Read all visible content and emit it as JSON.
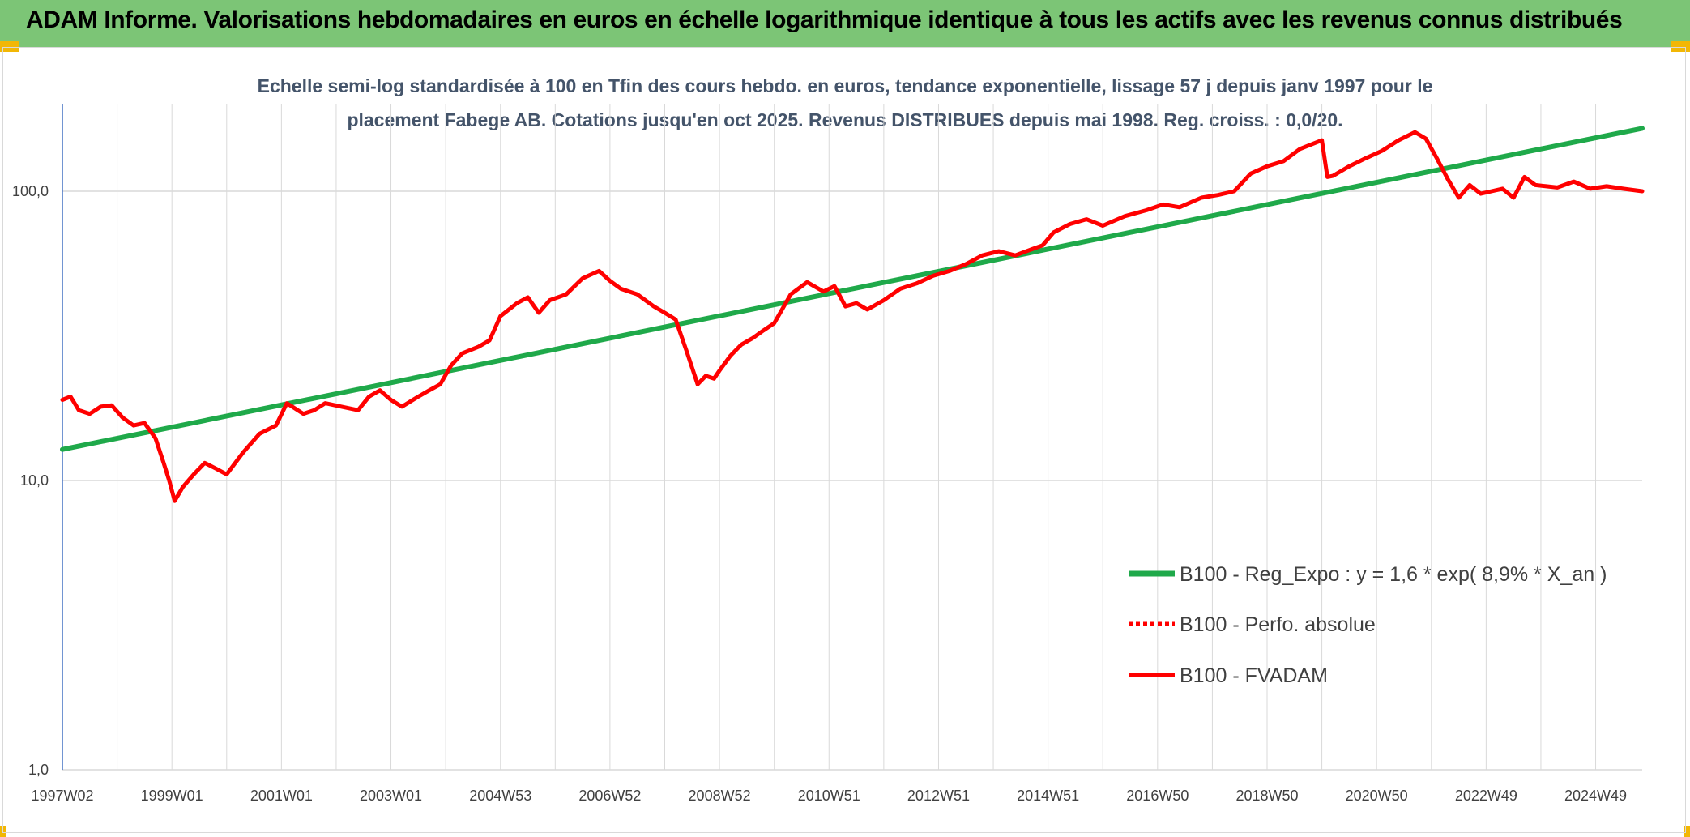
{
  "header": {
    "title": "ADAM Informe. Valorisations hebdomadaires en euros en échelle logarithmique identique à tous les actifs avec les revenus connus distribués"
  },
  "colors": {
    "header_bg": "#7cc576",
    "reg_line": "#1fa94a",
    "fvadam_line": "#ff0000",
    "perf_line": "#ff0000",
    "grid": "#d9d9d9",
    "axis": "#4472c4"
  },
  "chart_data": {
    "type": "line",
    "subtitle_lines": [
      "Echelle semi-log standardisée à 100 en Tfin des cours hebdo. en euros, tendance exponentielle, lissage 57 j depuis janv 1997 pour le",
      "placement Fabege AB. Cotations jusqu'en oct 2025. Revenus DISTRIBUES depuis mai 1998. Reg. croiss. : 0,0/20."
    ],
    "y_scale": "log",
    "ylim": [
      1,
      180
    ],
    "xlim": [
      1997.0,
      2025.85
    ],
    "y_ticks": [
      {
        "value": 1,
        "label": "1,0"
      },
      {
        "value": 10,
        "label": "10,0"
      },
      {
        "value": 100,
        "label": "100,0"
      }
    ],
    "x_ticks": [
      {
        "value": 1997.0,
        "label": "1997W02"
      },
      {
        "value": 1999.0,
        "label": "1999W01"
      },
      {
        "value": 2001.0,
        "label": "2001W01"
      },
      {
        "value": 2003.0,
        "label": "2003W01"
      },
      {
        "value": 2005.0,
        "label": "2004W53"
      },
      {
        "value": 2007.0,
        "label": "2006W52"
      },
      {
        "value": 2009.0,
        "label": "2008W52"
      },
      {
        "value": 2011.0,
        "label": "2010W51"
      },
      {
        "value": 2013.0,
        "label": "2012W51"
      },
      {
        "value": 2015.0,
        "label": "2014W51"
      },
      {
        "value": 2017.0,
        "label": "2016W50"
      },
      {
        "value": 2019.0,
        "label": "2018W50"
      },
      {
        "value": 2021.0,
        "label": "2020W50"
      },
      {
        "value": 2023.0,
        "label": "2022W49"
      },
      {
        "value": 2025.0,
        "label": "2024W49"
      }
    ],
    "legend_position": "right",
    "series": [
      {
        "name": "B100 - Reg_Expo : y = 1,6 * exp( 8,9% *  X_an )",
        "style": "solid-thick",
        "color": "#1fa94a",
        "x": [
          1997.0,
          2025.85
        ],
        "y": [
          12.8,
          165
        ]
      },
      {
        "name": "B100 - Perfo. absolue",
        "style": "dotted",
        "color": "#ff0000",
        "x": [],
        "y": []
      },
      {
        "name": "B100 - FVADAM",
        "style": "solid",
        "color": "#ff0000",
        "x": [
          1997.0,
          1997.15,
          1997.3,
          1997.5,
          1997.7,
          1997.9,
          1998.1,
          1998.3,
          1998.5,
          1998.7,
          1998.85,
          1998.95,
          1999.05,
          1999.2,
          1999.4,
          1999.6,
          1999.8,
          2000.0,
          2000.3,
          2000.6,
          2000.9,
          2001.1,
          2001.4,
          2001.6,
          2001.8,
          2002.1,
          2002.4,
          2002.6,
          2002.8,
          2003.0,
          2003.2,
          2003.5,
          2003.7,
          2003.9,
          2004.1,
          2004.3,
          2004.6,
          2004.8,
          2005.0,
          2005.3,
          2005.5,
          2005.7,
          2005.9,
          2006.2,
          2006.5,
          2006.8,
          2007.0,
          2007.2,
          2007.5,
          2007.8,
          2008.0,
          2008.2,
          2008.4,
          2008.6,
          2008.75,
          2008.9,
          2009.0,
          2009.2,
          2009.4,
          2009.6,
          2009.8,
          2010.0,
          2010.3,
          2010.6,
          2010.9,
          2011.1,
          2011.3,
          2011.5,
          2011.7,
          2012.0,
          2012.3,
          2012.6,
          2012.9,
          2013.2,
          2013.5,
          2013.8,
          2014.1,
          2014.4,
          2014.7,
          2014.9,
          2015.1,
          2015.4,
          2015.7,
          2016.0,
          2016.4,
          2016.8,
          2017.1,
          2017.4,
          2017.8,
          2018.1,
          2018.4,
          2018.7,
          2019.0,
          2019.3,
          2019.6,
          2019.8,
          2020.0,
          2020.1,
          2020.2,
          2020.5,
          2020.8,
          2021.1,
          2021.4,
          2021.7,
          2021.9,
          2022.1,
          2022.3,
          2022.5,
          2022.7,
          2022.9,
          2023.1,
          2023.3,
          2023.5,
          2023.7,
          2023.9,
          2024.1,
          2024.3,
          2024.6,
          2024.9,
          2025.2,
          2025.5,
          2025.85
        ],
        "y": [
          19.0,
          19.5,
          17.5,
          17.0,
          18.0,
          18.2,
          16.5,
          15.5,
          15.8,
          14.0,
          11.5,
          10.0,
          8.5,
          9.5,
          10.5,
          11.5,
          11.0,
          10.5,
          12.5,
          14.5,
          15.5,
          18.5,
          17.0,
          17.5,
          18.5,
          18.0,
          17.5,
          19.5,
          20.5,
          19.0,
          18.0,
          19.5,
          20.5,
          21.5,
          25.0,
          27.5,
          29.0,
          30.5,
          37.0,
          41.0,
          43.0,
          38.0,
          42.0,
          44.0,
          50.0,
          53.0,
          49.0,
          46.0,
          44.0,
          40.0,
          38.0,
          36.0,
          28.0,
          21.5,
          23.0,
          22.5,
          24.0,
          27.0,
          29.5,
          31.0,
          33.0,
          35.0,
          44.0,
          48.5,
          45.0,
          47.0,
          40.0,
          41.0,
          39.0,
          42.0,
          46.0,
          48.0,
          51.0,
          53.0,
          56.0,
          60.0,
          62.0,
          60.0,
          63.0,
          65.0,
          72.0,
          77.0,
          80.0,
          76.0,
          82.0,
          86.0,
          90.0,
          88.0,
          95.0,
          97.0,
          100.0,
          115.0,
          122.0,
          127.0,
          140.0,
          145.0,
          150.0,
          112.0,
          113.0,
          122.0,
          130.0,
          138.0,
          150.0,
          160.0,
          152.0,
          130.0,
          110.0,
          95.0,
          105.0,
          98.0,
          100.0,
          102.0,
          95.0,
          112.0,
          105.0,
          104.0,
          103.0,
          108.0,
          102.0,
          104.0,
          102.0,
          100.0
        ]
      }
    ]
  }
}
